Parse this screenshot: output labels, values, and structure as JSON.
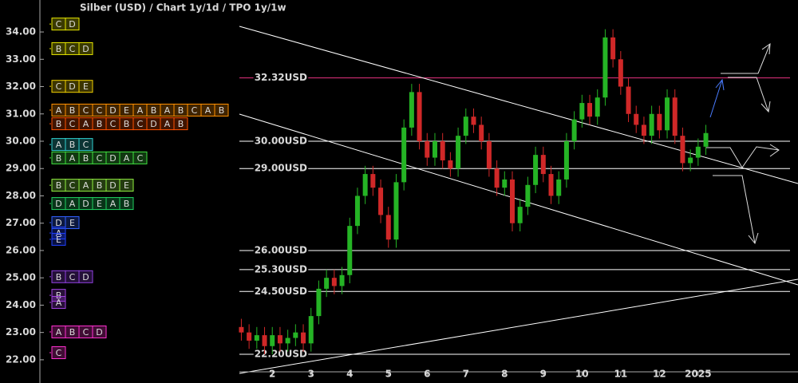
{
  "chart_data": {
    "type": "candlestick",
    "title": "Silber (USD) /  Chart 1y/1d / TPO 1y/1w",
    "x": [
      1.2,
      1.4,
      1.6,
      1.8,
      2.0,
      2.2,
      2.4,
      2.6,
      2.8,
      3.0,
      3.2,
      3.4,
      3.6,
      3.8,
      4.0,
      4.2,
      4.4,
      4.6,
      4.8,
      5.0,
      5.2,
      5.4,
      5.6,
      5.8,
      6.0,
      6.2,
      6.4,
      6.6,
      6.8,
      7.0,
      7.2,
      7.4,
      7.6,
      7.8,
      8.0,
      8.2,
      8.4,
      8.6,
      8.8,
      9.0,
      9.2,
      9.4,
      9.6,
      9.8,
      10.0,
      10.2,
      10.4,
      10.6,
      10.8,
      11.0,
      11.2,
      11.4,
      11.6,
      11.8,
      12.0,
      12.2,
      12.4,
      12.6,
      12.8,
      13.0,
      13.2
    ],
    "open": [
      23.2,
      23.0,
      22.7,
      22.9,
      22.5,
      22.9,
      22.6,
      22.8,
      23.0,
      22.6,
      23.6,
      24.6,
      25.0,
      24.7,
      25.1,
      26.9,
      28.0,
      28.8,
      28.3,
      27.3,
      26.4,
      28.5,
      30.5,
      31.8,
      30.0,
      29.4,
      30.0,
      29.3,
      29.0,
      30.2,
      30.9,
      30.6,
      30.0,
      29.0,
      28.3,
      28.6,
      27.0,
      27.6,
      28.4,
      29.5,
      28.8,
      28.0,
      28.6,
      30.0,
      30.8,
      31.4,
      30.9,
      31.6,
      33.8,
      33.0,
      32.0,
      31.0,
      30.6,
      30.2,
      31.0,
      30.4,
      31.6,
      30.2,
      29.2,
      29.4,
      29.8
    ],
    "high": [
      23.5,
      23.3,
      23.2,
      23.2,
      23.2,
      23.2,
      23.1,
      23.3,
      23.3,
      23.9,
      24.9,
      25.3,
      25.3,
      25.4,
      27.2,
      28.3,
      29.1,
      29.1,
      28.6,
      27.6,
      28.8,
      30.8,
      32.1,
      32.1,
      30.3,
      30.3,
      30.3,
      29.6,
      30.5,
      31.2,
      31.2,
      30.9,
      30.3,
      29.3,
      28.9,
      28.9,
      27.9,
      28.7,
      29.8,
      29.8,
      29.1,
      28.9,
      30.3,
      31.1,
      31.7,
      31.7,
      31.9,
      34.1,
      34.1,
      33.3,
      32.3,
      31.3,
      30.9,
      31.3,
      31.3,
      31.9,
      31.9,
      30.5,
      29.7,
      30.1,
      30.6
    ],
    "low": [
      22.7,
      22.4,
      22.4,
      22.2,
      22.2,
      22.3,
      22.3,
      22.5,
      22.3,
      22.3,
      23.3,
      24.3,
      24.4,
      24.4,
      24.8,
      26.6,
      27.7,
      28.0,
      27.0,
      26.1,
      26.1,
      28.2,
      30.2,
      29.7,
      29.1,
      29.1,
      29.0,
      28.7,
      28.7,
      29.9,
      30.3,
      29.7,
      28.7,
      28.0,
      28.0,
      26.7,
      26.7,
      27.3,
      28.1,
      28.5,
      27.7,
      27.7,
      28.3,
      29.7,
      30.5,
      30.6,
      30.6,
      31.3,
      32.7,
      31.7,
      30.7,
      30.3,
      29.9,
      29.9,
      30.1,
      30.1,
      29.9,
      28.9,
      28.9,
      29.1,
      29.5
    ],
    "close": [
      23.0,
      22.7,
      22.9,
      22.5,
      22.9,
      22.6,
      22.8,
      23.0,
      22.6,
      23.6,
      24.6,
      25.0,
      24.7,
      25.1,
      26.9,
      28.0,
      28.8,
      28.3,
      27.3,
      26.4,
      28.5,
      30.5,
      31.8,
      30.0,
      29.4,
      30.0,
      29.3,
      29.0,
      30.2,
      30.9,
      30.6,
      30.0,
      29.0,
      28.3,
      28.6,
      27.0,
      27.6,
      28.4,
      29.5,
      28.8,
      28.0,
      28.6,
      30.0,
      30.8,
      31.4,
      30.9,
      31.6,
      33.8,
      33.0,
      32.0,
      31.0,
      30.6,
      30.2,
      31.0,
      30.4,
      31.6,
      30.2,
      29.2,
      29.4,
      29.8,
      30.3
    ],
    "up_color": "#25b425",
    "down_color": "#d02828",
    "xlim": [
      1.15,
      15.58
    ],
    "ylim": [
      21.15,
      35.17
    ],
    "xticks": [
      2,
      3,
      4,
      5,
      6,
      7,
      8,
      9,
      10,
      11,
      12,
      {
        "value": 13,
        "label": "2025"
      }
    ],
    "yticks": [
      {
        "value": 22,
        "label": "22.00"
      },
      {
        "value": 23,
        "label": "23.00"
      },
      {
        "value": 24,
        "label": "24.00"
      },
      {
        "value": 25,
        "label": "25.00"
      },
      {
        "value": 26,
        "label": "26.00"
      },
      {
        "value": 27,
        "label": "27.00"
      },
      {
        "value": 28,
        "label": "28.00"
      },
      {
        "value": 29,
        "label": "29.00"
      },
      {
        "value": 30,
        "label": "30.00"
      },
      {
        "value": 31,
        "label": "31.00"
      },
      {
        "value": 32,
        "label": "32.00"
      },
      {
        "value": 33,
        "label": "33.00"
      },
      {
        "value": 34,
        "label": "34.00"
      }
    ],
    "levels": [
      {
        "value": 32.32,
        "label": "32.32USD",
        "color": "#e8337f"
      },
      {
        "value": 30,
        "label": "30.00USD",
        "color": "#ffffff"
      },
      {
        "value": 29,
        "label": "29.00USD",
        "color": "#ffffff"
      },
      {
        "value": 26,
        "label": "26.00USD",
        "color": "#ffffff"
      },
      {
        "value": 25.3,
        "label": "25.30USD",
        "color": "#ffffff"
      },
      {
        "value": 24.5,
        "label": "24.50USD",
        "color": "#ffffff"
      },
      {
        "value": 22.2,
        "label": "22.20USD",
        "color": "#ffffff"
      }
    ],
    "tpo": {
      "rows": [
        {
          "price": 34.29,
          "letters": [
            "C",
            "D"
          ],
          "color": "#e6e600"
        },
        {
          "price": 33.39,
          "letters": [
            "B",
            "C",
            "D"
          ],
          "color": "#e6e600"
        },
        {
          "price": 32.01,
          "letters": [
            "C",
            "D",
            "E"
          ],
          "color": "#f0d000"
        },
        {
          "price": 31.14,
          "letters": [
            "A",
            "B",
            "C",
            "C",
            "D",
            "E",
            "A",
            "B",
            "A",
            "B",
            "C",
            "A",
            "B"
          ],
          "color": "#ff9000"
        },
        {
          "price": 30.64,
          "letters": [
            "B",
            "C",
            "A",
            "B",
            "C",
            "B",
            "C",
            "D",
            "A",
            "B"
          ],
          "color": "#ff5000"
        },
        {
          "price": 29.88,
          "letters": [
            "A",
            "B",
            "C"
          ],
          "color": "#30d0d0"
        },
        {
          "price": 29.39,
          "letters": [
            "B",
            "A",
            "B",
            "C",
            "D",
            "A",
            "C"
          ],
          "color": "#40e040"
        },
        {
          "price": 28.39,
          "letters": [
            "B",
            "C",
            "A",
            "B",
            "D",
            "E"
          ],
          "color": "#90f040"
        },
        {
          "price": 27.72,
          "letters": [
            "D",
            "A",
            "D",
            "E",
            "A",
            "B"
          ],
          "color": "#20d060"
        },
        {
          "price": 27.02,
          "letters": [
            "D",
            "E"
          ],
          "color": "#3060ff"
        },
        {
          "price": 26.64,
          "letters": [
            "A"
          ],
          "color": "#2040ff"
        },
        {
          "price": 26.41,
          "letters": [
            "E"
          ],
          "color": "#2040ff"
        },
        {
          "price": 25.04,
          "letters": [
            "B",
            "C",
            "D"
          ],
          "color": "#9040e0"
        },
        {
          "price": 24.36,
          "letters": [
            "B"
          ],
          "color": "#a040e0"
        },
        {
          "price": 24.1,
          "letters": [
            "A"
          ],
          "color": "#a040e0"
        },
        {
          "price": 23.02,
          "letters": [
            "A",
            "B",
            "C",
            "D"
          ],
          "color": "#ff30d0"
        },
        {
          "price": 22.26,
          "letters": [
            "C"
          ],
          "color": "#ff30d0"
        }
      ]
    }
  }
}
